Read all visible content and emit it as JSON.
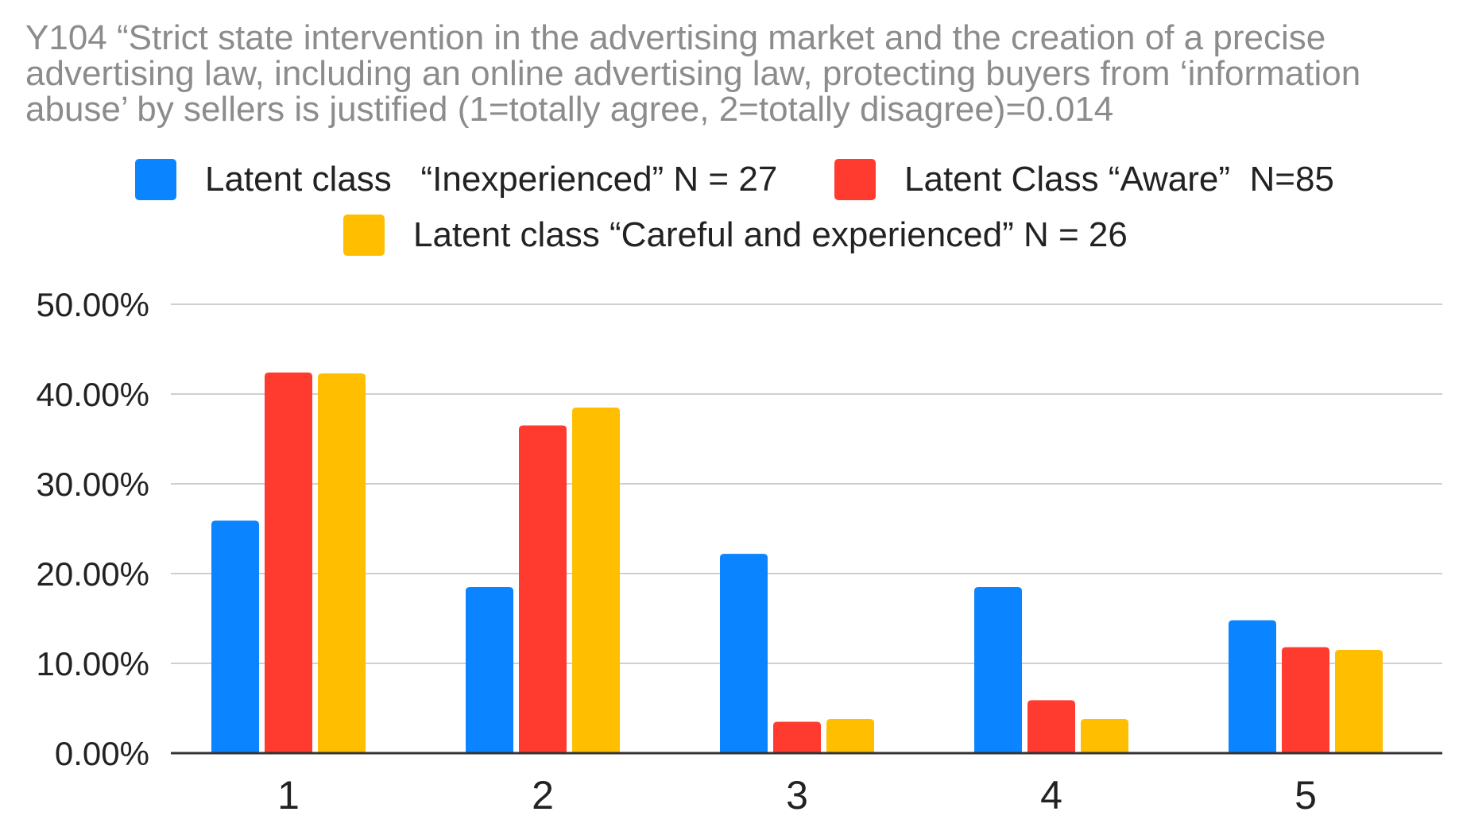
{
  "chart_data": {
    "type": "bar",
    "title_lines": [
      "Y104 “Strict state intervention in the advertising market and the creation of a precise",
      "advertising law, including an online advertising law, protecting buyers from ‘information",
      "abuse’ by sellers is justified (1=totally agree, 2=totally disagree)=0.014"
    ],
    "categories": [
      "1",
      "2",
      "3",
      "4",
      "5"
    ],
    "series": [
      {
        "name": "Latent class   “Inexperienced” N = 27",
        "color": "#0a84ff",
        "values": [
          0.259,
          0.185,
          0.222,
          0.185,
          0.148
        ]
      },
      {
        "name": "Latent Class “Aware”  N=85",
        "color": "#ff3b30",
        "values": [
          0.424,
          0.365,
          0.035,
          0.059,
          0.118
        ]
      },
      {
        "name": "Latent class “Careful and experienced” N = 26",
        "color": "#ffbf00",
        "values": [
          0.423,
          0.385,
          0.038,
          0.038,
          0.115
        ]
      }
    ],
    "y_ticks": [
      "0.00%",
      "10.00%",
      "20.00%",
      "30.00%",
      "40.00%",
      "50.00%"
    ],
    "ylim": [
      0,
      0.5
    ],
    "grid": true,
    "legend_position": "top"
  }
}
